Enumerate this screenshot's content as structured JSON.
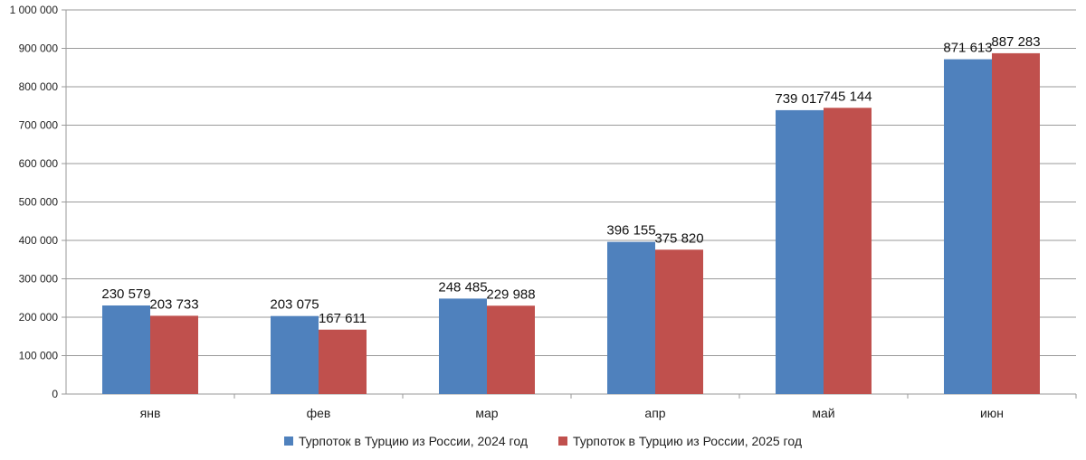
{
  "chart_data": {
    "type": "bar",
    "title": "",
    "xlabel": "",
    "ylabel": "",
    "categories": [
      "янв",
      "фев",
      "мар",
      "апр",
      "май",
      "июн"
    ],
    "series": [
      {
        "name": "Турпоток  в Турцию из России, 2024 год",
        "color": "#4F81BD",
        "values": [
          230579,
          203075,
          248485,
          396155,
          739017,
          871613
        ],
        "labels": [
          "230 579",
          "203 075",
          "248 485",
          "396 155",
          "739 017",
          "871 613"
        ]
      },
      {
        "name": "Турпоток  в Турцию из России, 2025 год",
        "color": "#C0504D",
        "values": [
          203733,
          167611,
          229988,
          375820,
          745144,
          887283
        ],
        "labels": [
          "203 733",
          "167 611",
          "229 988",
          "375 820",
          "745 144",
          "887 283"
        ]
      }
    ],
    "ylim": [
      0,
      1000000
    ],
    "yticks": [
      0,
      100000,
      200000,
      300000,
      400000,
      500000,
      600000,
      700000,
      800000,
      900000,
      1000000
    ],
    "ytick_labels": [
      "0",
      "100 000",
      "200 000",
      "300 000",
      "400 000",
      "500 000",
      "600 000",
      "700 000",
      "800 000",
      "900 000",
      "1 000 000"
    ],
    "grid": true,
    "legend_position": "bottom"
  }
}
